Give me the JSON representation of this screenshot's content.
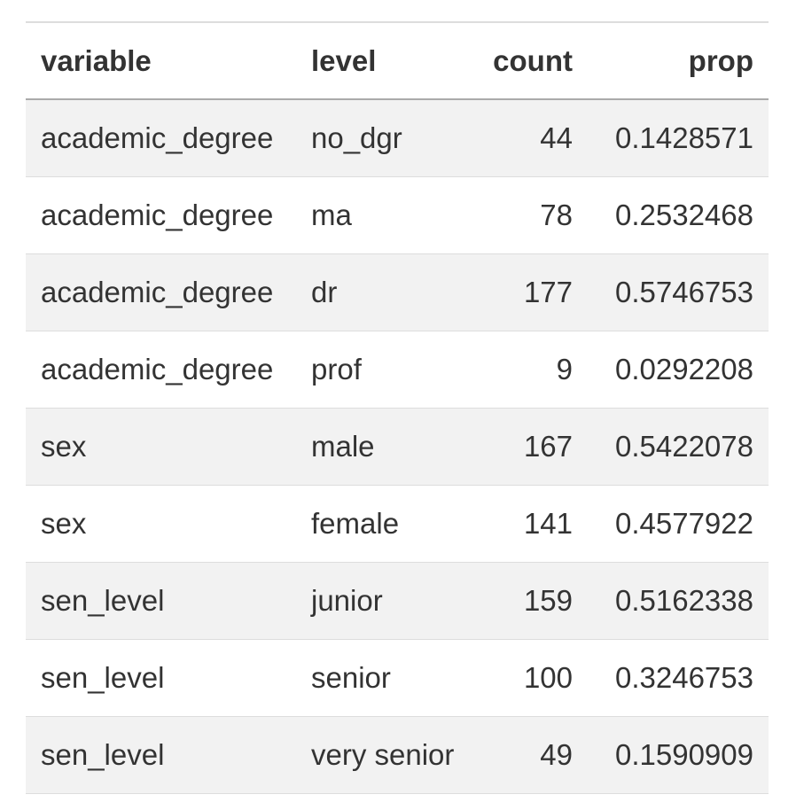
{
  "table": {
    "headers": [
      "variable",
      "level",
      "count",
      "prop"
    ],
    "rows": [
      [
        "academic_degree",
        "no_dgr",
        "44",
        "0.1428571"
      ],
      [
        "academic_degree",
        "ma",
        "78",
        "0.2532468"
      ],
      [
        "academic_degree",
        "dr",
        "177",
        "0.5746753"
      ],
      [
        "academic_degree",
        "prof",
        "9",
        "0.0292208"
      ],
      [
        "sex",
        "male",
        "167",
        "0.5422078"
      ],
      [
        "sex",
        "female",
        "141",
        "0.4577922"
      ],
      [
        "sen_level",
        "junior",
        "159",
        "0.5162338"
      ],
      [
        "sen_level",
        "senior",
        "100",
        "0.3246753"
      ],
      [
        "sen_level",
        "very senior",
        "49",
        "0.1590909"
      ]
    ]
  }
}
